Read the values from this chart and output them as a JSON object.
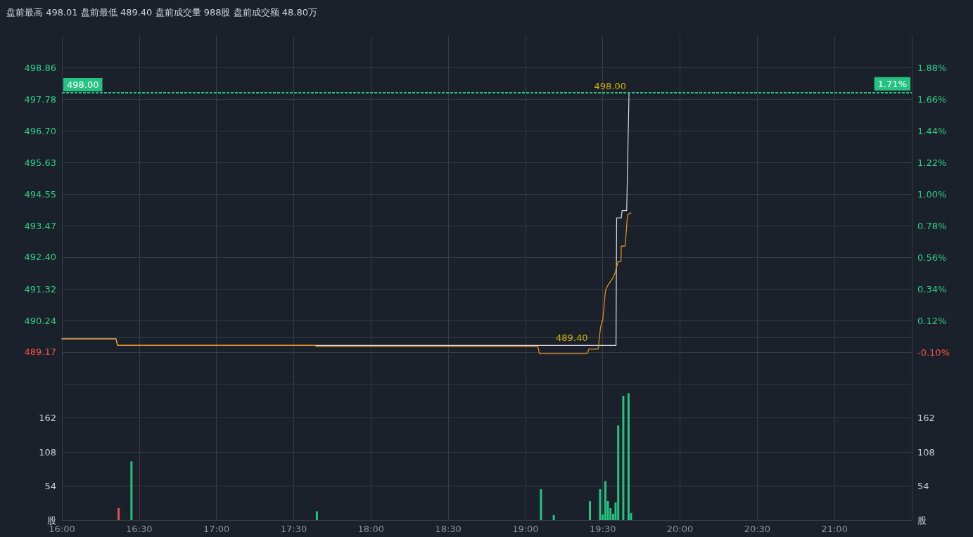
{
  "chart_data": [
    {
      "type": "line",
      "title": "盘前最高 498.01 盘前最低 489.40 盘前成交量 988股 盘前成交额 48.80万",
      "xlim": [
        16,
        21.5
      ],
      "xticks": [
        {
          "value": 16,
          "label": null
        },
        {
          "value": 16.5,
          "label": null
        },
        {
          "value": 17,
          "label": null
        },
        {
          "value": 17.5,
          "label": null
        },
        {
          "value": 18,
          "label": null
        },
        {
          "value": 18.5,
          "label": null
        },
        {
          "value": 19,
          "label": null
        },
        {
          "value": 19.5,
          "label": null
        },
        {
          "value": 20,
          "label": null
        },
        {
          "value": 20.5,
          "label": null
        },
        {
          "value": 21,
          "label": null
        }
      ],
      "ylim": [
        488.09,
        499.94
      ],
      "yticks": [
        489.17,
        490.24,
        491.32,
        {
          "value": 492.4,
          "label": "492.40"
        },
        493.47,
        494.55,
        495.63,
        {
          "value": 496.7,
          "label": "496.70"
        },
        497.78,
        498.86
      ],
      "y2lim": [
        -0.32,
        2.1
      ],
      "y2ticks": [
        {
          "value": -0.1,
          "label": "-0.10%"
        },
        {
          "value": 0.12,
          "label": "0.12%"
        },
        {
          "value": 0.34,
          "label": "0.34%"
        },
        {
          "value": 0.56,
          "label": "0.56%"
        },
        {
          "value": 0.78,
          "label": "0.78%"
        },
        {
          "value": 1.0,
          "label": "1.00%"
        },
        {
          "value": 1.22,
          "label": "1.22%"
        },
        {
          "value": 1.44,
          "label": "1.44%"
        },
        {
          "value": 1.66,
          "label": "1.66%"
        },
        {
          "value": 1.88,
          "label": "1.88%"
        }
      ],
      "tick_labels": "y",
      "grid": true,
      "marker": "none",
      "line_style": "solid",
      "series": [
        {
          "color": "#d9d9d9",
          "x": [
            16,
            16.35,
            16.36,
            19.586,
            19.59,
            19.62,
            19.625,
            19.655,
            19.67,
            19.677
          ],
          "values": [
            489.62,
            489.62,
            489.4,
            489.4,
            493.74,
            493.74,
            493.99,
            493.99,
            498.0,
            498.0
          ]
        },
        {
          "color": "#f0951e",
          "x": [
            16,
            16.35,
            16.36,
            17.64,
            17.645,
            19.08,
            19.09,
            19.4,
            19.41,
            19.47,
            19.486,
            19.5,
            19.518,
            19.536,
            19.568,
            19.582,
            19.6,
            19.618,
            19.62,
            19.645,
            19.66,
            19.682
          ],
          "values": [
            489.62,
            489.62,
            489.4,
            489.4,
            489.36,
            489.36,
            489.12,
            489.12,
            489.27,
            489.27,
            490.03,
            490.27,
            491.28,
            491.47,
            491.71,
            491.9,
            492.26,
            492.26,
            492.78,
            492.78,
            493.84,
            493.91
          ]
        }
      ],
      "ref_lines": [
        {
          "axis": "y",
          "value": 498.0,
          "label": "498.00",
          "color": "#26c281",
          "line_style": "dashed"
        },
        {
          "axis": "y2",
          "value": 1.71,
          "label": "1.71%",
          "color": "#26c281",
          "line_style": "dashed"
        }
      ],
      "annotations": [
        {
          "text": "498.00",
          "x": 19.67,
          "y": 498.0
        },
        {
          "text": "489.40",
          "x": 19.3,
          "y": 489.4
        }
      ]
    },
    {
      "type": "bar",
      "xlim": [
        16,
        21.5
      ],
      "xticks": [
        {
          "value": 16,
          "label": "16:00"
        },
        {
          "value": 16.5,
          "label": "16:30"
        },
        {
          "value": 17,
          "label": "17:00"
        },
        {
          "value": 17.5,
          "label": "17:30"
        },
        {
          "value": 18,
          "label": "18:00"
        },
        {
          "value": 18.5,
          "label": "18:30"
        },
        {
          "value": 19,
          "label": "19:00"
        },
        {
          "value": 19.5,
          "label": "19:30"
        },
        {
          "value": 20,
          "label": "20:00"
        },
        {
          "value": 20.5,
          "label": "20:30"
        },
        {
          "value": 21,
          "label": "21:00"
        }
      ],
      "ylim": [
        0,
        216
      ],
      "yticks": [
        {
          "value": 0,
          "label": "股"
        },
        54,
        108,
        162,
        {
          "value": 216,
          "label": null
        }
      ],
      "y2lim": [
        0,
        216
      ],
      "y2ticks": [
        {
          "value": 0,
          "label": "股"
        },
        54,
        108,
        162,
        {
          "value": 216,
          "label": null
        }
      ],
      "grid": true,
      "x": [
        16.367,
        16.45,
        17.65,
        19.1,
        19.183,
        19.417,
        19.483,
        19.5,
        19.517,
        19.533,
        19.55,
        19.567,
        19.583,
        19.6,
        19.633,
        19.667,
        19.683
      ],
      "values": [
        19,
        93,
        14,
        49,
        8,
        30,
        49,
        9,
        62,
        30,
        19,
        10,
        28,
        150,
        197,
        201,
        11
      ],
      "colors": [
        "#e5534b",
        "#26c281",
        "#26c281",
        "#26c281",
        "#26c281",
        "#26c281",
        "#26c281",
        "#26c281",
        "#26c281",
        "#26c281",
        "#26c281",
        "#26c281",
        "#26c281",
        "#26c281",
        "#26c281",
        "#26c281",
        "#26c281"
      ]
    }
  ]
}
